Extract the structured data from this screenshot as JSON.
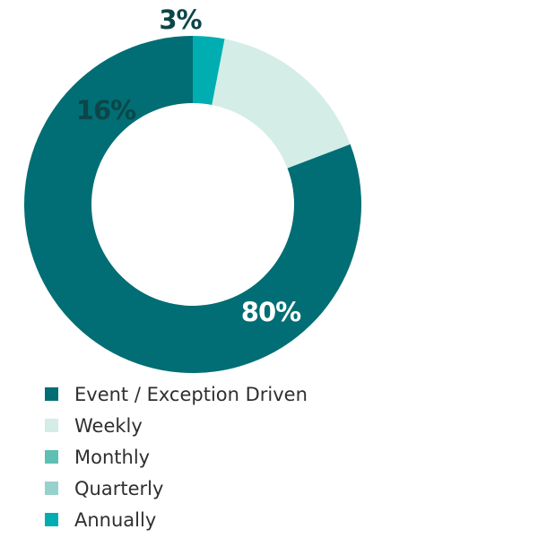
{
  "chart_data": {
    "type": "pie",
    "style": "donut",
    "categories": [
      "Event / Exception Driven",
      "Weekly",
      "Monthly",
      "Quarterly",
      "Annually"
    ],
    "values": [
      80,
      16,
      0,
      0,
      3
    ],
    "slice_labels": [
      "80%",
      "16%",
      "",
      "",
      "3%"
    ],
    "colors": [
      "#006e74",
      "#d4ede6",
      "#5ebfb3",
      "#97d1cb",
      "#00aeb2"
    ],
    "label_colors": [
      "#ffffff",
      "#0c4649",
      "#0c4649",
      "#0c4649",
      "#0c4649"
    ],
    "legend_position": "bottom-left",
    "title": ""
  }
}
